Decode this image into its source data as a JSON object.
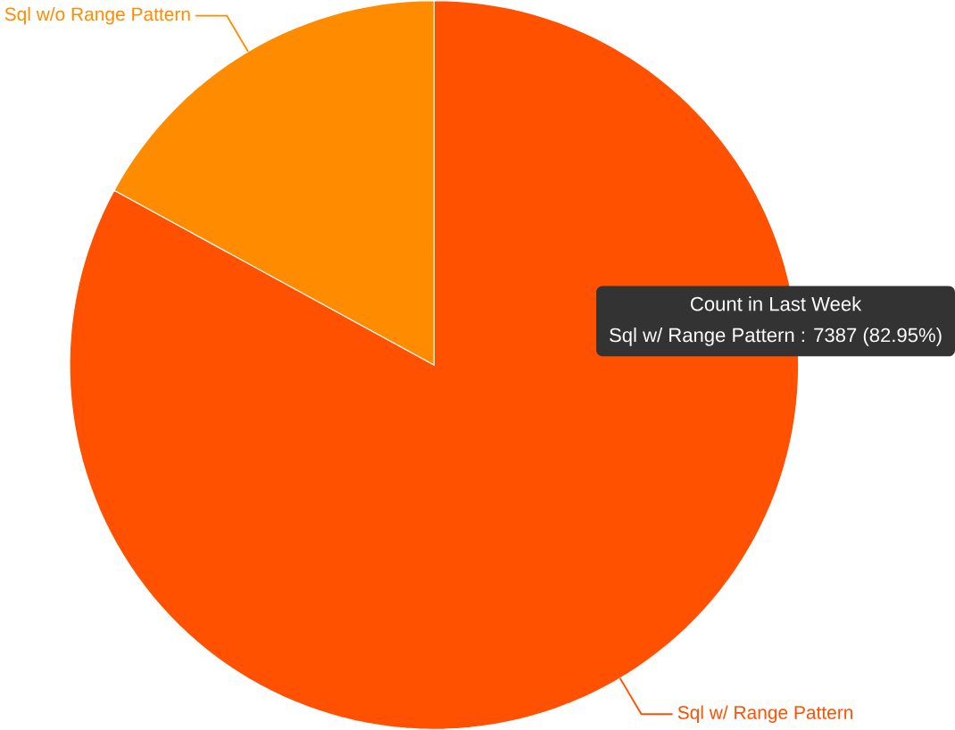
{
  "chart_data": {
    "type": "pie",
    "categories": [
      "Sql w/ Range Pattern",
      "Sql w/o Range Pattern"
    ],
    "values": [
      82.95,
      17.05
    ],
    "colors": [
      "#ff5100",
      "#ff8c00"
    ],
    "annotations": [
      "Count in Last Week",
      "Sql w/ Range Pattern : 7387 (82.95%)"
    ]
  }
}
